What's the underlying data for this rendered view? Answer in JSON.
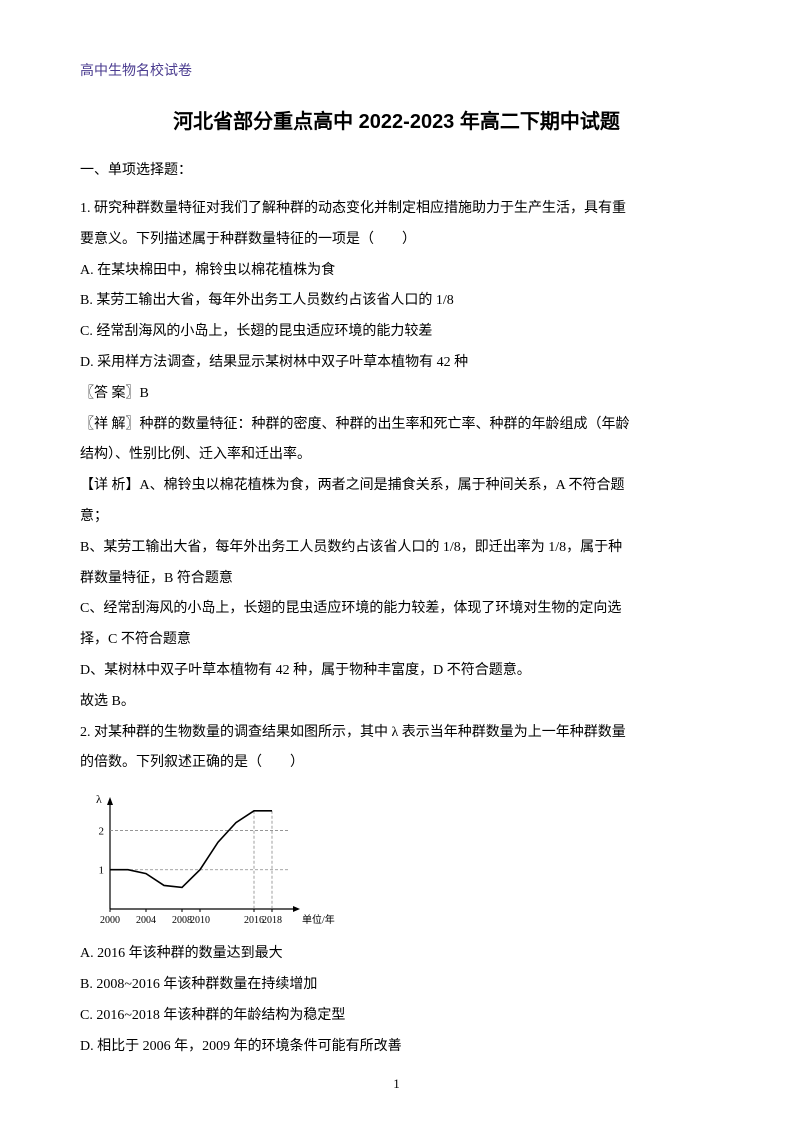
{
  "header": "高中生物名校试卷",
  "title": "河北省部分重点高中 2022-2023 年高二下期中试题",
  "section_header": "一、单项选择题：",
  "q1": {
    "stem1": "1. 研究种群数量特征对我们了解种群的动态变化并制定相应措施助力于生产生活，具有重",
    "stem2": "要意义。下列描述属于种群数量特征的一项是（　　）",
    "optA": "A. 在某块棉田中，棉铃虫以棉花植株为食",
    "optB": "B. 某劳工输出大省，每年外出务工人员数约占该省人口的 1/8",
    "optC": "C. 经常刮海风的小岛上，长翅的昆虫适应环境的能力较差",
    "optD": "D. 采用样方法调查，结果显示某树林中双子叶草本植物有 42 种",
    "answer": "〖答 案〗B",
    "analysis1": "〖祥 解〗种群的数量特征：种群的密度、种群的出生率和死亡率、种群的年龄组成（年龄",
    "analysis2": "结构）、性别比例、迁入率和迁出率。",
    "detail1": "【详 析】A、棉铃虫以棉花植株为食，两者之间是捕食关系，属于种间关系，A 不符合题",
    "detail2": "意；",
    "detail3": "B、某劳工输出大省，每年外出务工人员数约占该省人口的 1/8，即迁出率为 1/8，属于种",
    "detail4": "群数量特征，B 符合题意",
    "detail5": "C、经常刮海风的小岛上，长翅的昆虫适应环境的能力较差，体现了环境对生物的定向选",
    "detail6": "择，C 不符合题意",
    "detail7": "D、某树林中双子叶草本植物有 42 种，属于物种丰富度，D 不符合题意。",
    "detail8": "故选 B。"
  },
  "q2": {
    "stem1": "2. 对某种群的生物数量的调查结果如图所示，其中 λ 表示当年种群数量为上一年种群数量",
    "stem2": "的倍数。下列叙述正确的是（　　）",
    "optA": "A. 2016 年该种群的数量达到最大",
    "optB": "B. 2008~2016 年该种群数量在持续增加",
    "optC": "C. 2016~2018 年该种群的年龄结构为稳定型",
    "optD": "D. 相比于 2006 年，2009 年的环境条件可能有所改善"
  },
  "chart": {
    "type": "line",
    "x_label": "单位/年",
    "y_label": "λ",
    "x_ticks": [
      2000,
      2004,
      2008,
      2010,
      2016,
      2018
    ],
    "y_ticks": [
      1,
      2
    ],
    "y_range": [
      0,
      2.8
    ],
    "x_range": [
      2000,
      2020
    ],
    "line_color": "#000000",
    "grid_color": "#888888",
    "background": "#ffffff",
    "data_points": [
      {
        "x": 2000,
        "y": 1.0
      },
      {
        "x": 2002,
        "y": 1.0
      },
      {
        "x": 2004,
        "y": 0.9
      },
      {
        "x": 2006,
        "y": 0.6
      },
      {
        "x": 2008,
        "y": 0.55
      },
      {
        "x": 2010,
        "y": 1.0
      },
      {
        "x": 2012,
        "y": 1.7
      },
      {
        "x": 2014,
        "y": 2.2
      },
      {
        "x": 2016,
        "y": 2.5
      },
      {
        "x": 2017,
        "y": 2.5
      },
      {
        "x": 2018,
        "y": 2.5
      }
    ],
    "dashed_lines": [
      {
        "x": 2016,
        "y_from": 0,
        "y_to": 2.5
      },
      {
        "x": 2018,
        "y_from": 0,
        "y_to": 2.5
      }
    ]
  },
  "page_number": "1"
}
